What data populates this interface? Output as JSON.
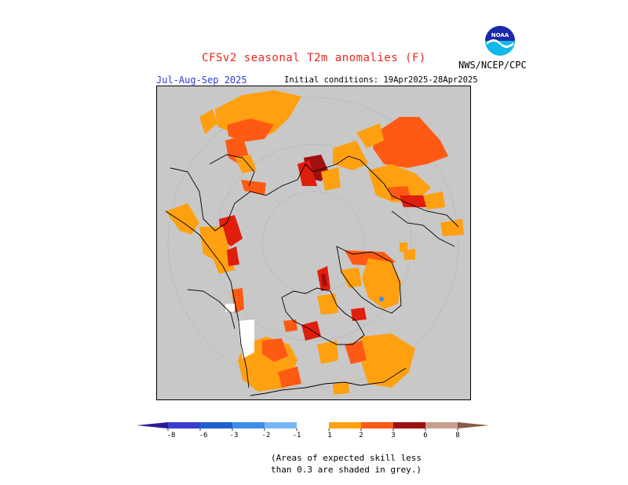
{
  "header": {
    "title": "CFSv2 seasonal T2m anomalies (F)",
    "period": "Jul-Aug-Sep 2025",
    "initial_conditions": "Initial conditions: 19Apr2025-28Apr2025",
    "agency": "NWS/NCEP/CPC",
    "logo_text": "NOAA"
  },
  "colors": {
    "title": "#e8251c",
    "period": "#2a3fd4",
    "no_skill": "#c8c8c8",
    "land_outline": "#000000"
  },
  "legend": {
    "tick_labels": [
      "-8",
      "-6",
      "-3",
      "-2",
      "-1",
      "1",
      "2",
      "3",
      "6",
      "8"
    ],
    "colors": [
      "#2a1a9a",
      "#3b3bd2",
      "#1f5fd0",
      "#3a8ee8",
      "#78b6f5",
      "#ffffff",
      "#ffa010",
      "#ff5a14",
      "#e01e0e",
      "#a01010",
      "#c8a090",
      "#8a5a4a"
    ]
  },
  "footnote": {
    "line1": "(Areas of expected skill less",
    "line2": "than 0.3 are shaded in grey.)"
  }
}
